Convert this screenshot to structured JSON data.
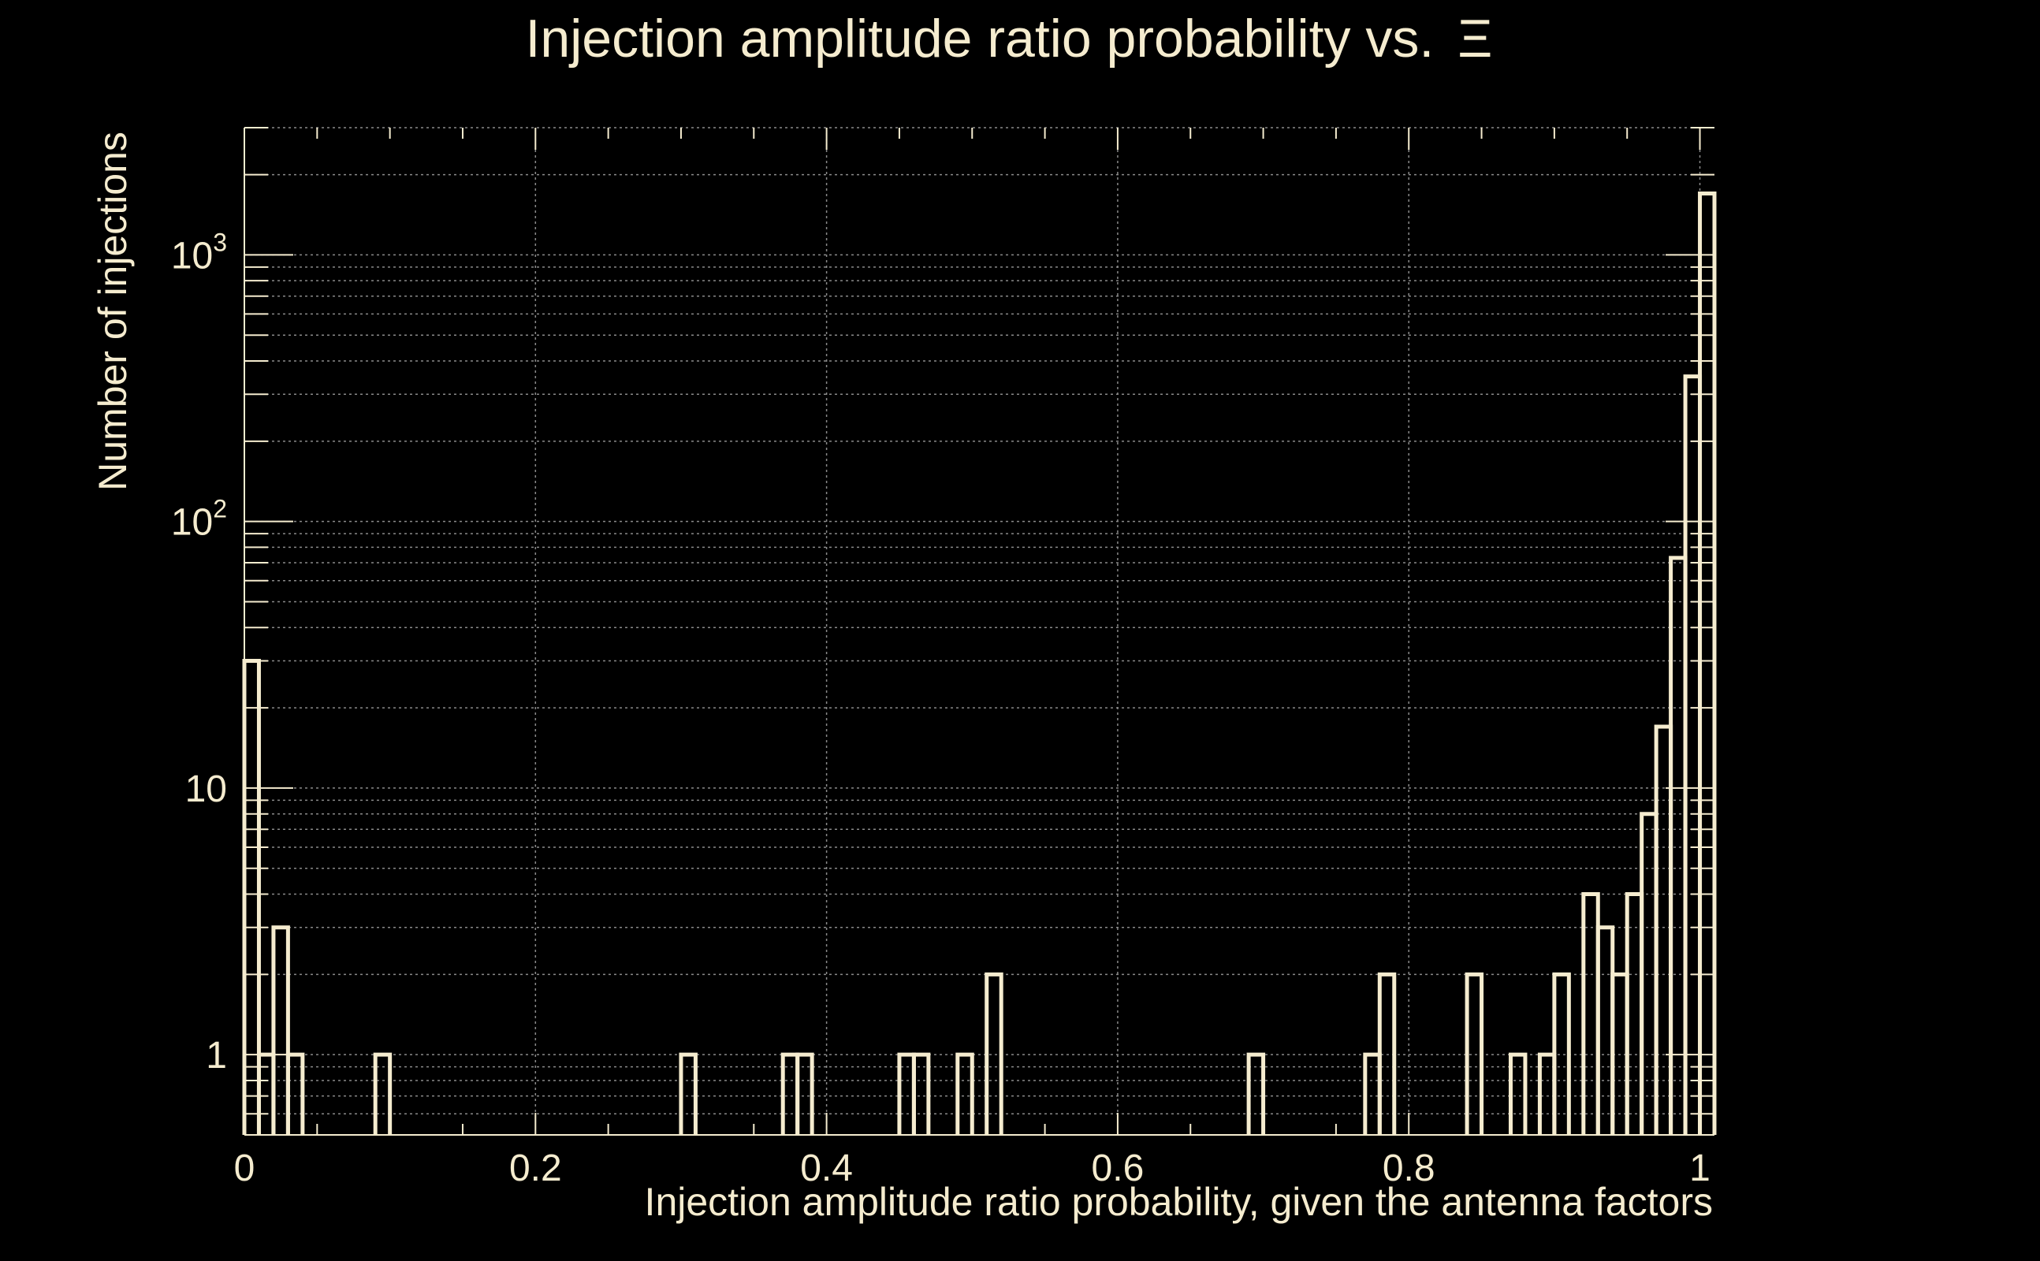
{
  "chart_data": {
    "type": "bar",
    "title": "Injection amplitude ratio probability vs.",
    "title_symbol": "Ξ",
    "xlabel": "Injection amplitude ratio probability, given the antenna factors",
    "ylabel": "Number of injections",
    "xlim": [
      0,
      1.01
    ],
    "ylim": [
      0.5,
      3000
    ],
    "yscale": "log",
    "grid": true,
    "x_ticks": [
      {
        "value": 0,
        "label": "0"
      },
      {
        "value": 0.2,
        "label": "0.2"
      },
      {
        "value": 0.4,
        "label": "0.4"
      },
      {
        "value": 0.6,
        "label": "0.6"
      },
      {
        "value": 0.8,
        "label": "0.8"
      },
      {
        "value": 1,
        "label": "1"
      }
    ],
    "y_ticks": [
      {
        "value": 1,
        "base": "1",
        "exp": ""
      },
      {
        "value": 10,
        "base": "10",
        "exp": ""
      },
      {
        "value": 100,
        "base": "10",
        "exp": "2"
      },
      {
        "value": 1000,
        "base": "10",
        "exp": "3"
      }
    ],
    "bin_width": 0.01,
    "series": [
      {
        "bin_starts": [
          0.0,
          0.01,
          0.02,
          0.03,
          0.09,
          0.3,
          0.37,
          0.38,
          0.45,
          0.46,
          0.49,
          0.51,
          0.69,
          0.77,
          0.78,
          0.84,
          0.87,
          0.89,
          0.9,
          0.92,
          0.93,
          0.94,
          0.95,
          0.96,
          0.97,
          0.98,
          0.99,
          1.0
        ],
        "values": [
          30,
          1,
          3,
          1,
          1,
          1,
          1,
          1,
          1,
          1,
          1,
          2,
          1,
          1,
          2,
          2,
          1,
          1,
          2,
          4,
          3,
          2,
          4,
          8,
          17,
          73,
          350,
          1700
        ]
      }
    ]
  }
}
